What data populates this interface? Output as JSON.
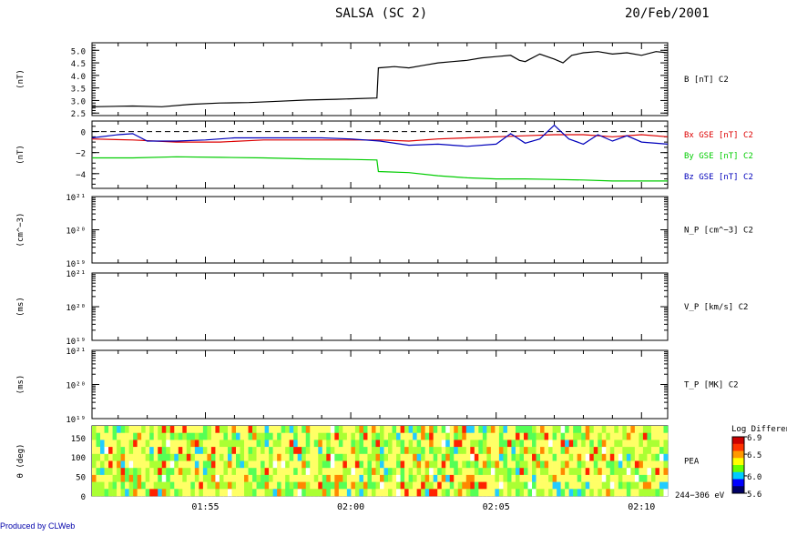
{
  "header": {
    "title": "SALSA (SC 2)",
    "date": "20/Feb/2001"
  },
  "footer": {
    "credit": "Produced by CLWeb"
  },
  "x_axis": {
    "tick_labels": [
      "01:55",
      "02:00",
      "02:05",
      "02:10"
    ],
    "tick_minutes": [
      -5,
      0,
      5,
      10
    ],
    "range_minutes": [
      -8.9,
      10.9
    ],
    "reference": "02:00"
  },
  "panels": [
    {
      "id": "b",
      "unit_label": "(nT)",
      "y_tick_labels": [
        "5.0",
        "4.5",
        "4.0",
        "3.5",
        "3.0",
        "2.5"
      ],
      "series_labels": [
        {
          "text": "B [nT] C2",
          "color": "#000000"
        }
      ]
    },
    {
      "id": "bgse",
      "unit_label": "(nT)",
      "y_tick_labels": [
        "0",
        "−2",
        "−4"
      ],
      "series_labels": [
        {
          "text": "Bx GSE [nT] C2",
          "color": "#dd0000"
        },
        {
          "text": "By GSE [nT] C2",
          "color": "#00cc00"
        },
        {
          "text": "Bz GSE [nT] C2",
          "color": "#0000bb"
        }
      ]
    },
    {
      "id": "np",
      "unit_label": "(cm^−3)",
      "y_tick_labels": [
        "10²¹",
        "10²⁰",
        "10¹⁹"
      ],
      "series_labels": [
        {
          "text": "N_P [cm^−3] C2",
          "color": "#000000"
        }
      ]
    },
    {
      "id": "vp",
      "unit_label": "(ms)",
      "y_tick_labels": [
        "10²¹",
        "10²⁰",
        "10¹⁹"
      ],
      "series_labels": [
        {
          "text": "V_P [km/s] C2",
          "color": "#000000"
        }
      ]
    },
    {
      "id": "tp",
      "unit_label": "(ms)",
      "y_tick_labels": [
        "10²¹",
        "10²⁰",
        "10¹⁹"
      ],
      "series_labels": [
        {
          "text": "T_P [MK] C2",
          "color": "#000000"
        }
      ]
    },
    {
      "id": "pea",
      "unit_label": "θ (deg)",
      "y_tick_labels": [
        "150",
        "100",
        "50",
        "0"
      ],
      "series_labels": [
        {
          "text": "PEA",
          "color": "#000000"
        }
      ],
      "energy_label": "244−306 eV"
    }
  ],
  "colorbar": {
    "title": "Log Differential",
    "tick_labels": [
      "6.9",
      "6.5",
      "6.0",
      "5.6"
    ]
  },
  "chart_data": [
    {
      "type": "line",
      "panel": "b",
      "xlabel": "",
      "ylabel": "(nT)",
      "ylim": [
        2.4,
        5.3
      ],
      "series": [
        {
          "name": "B [nT] C2",
          "color": "#000000",
          "x_minutes": [
            -8.9,
            -7.5,
            -6.5,
            -5.5,
            -4.5,
            -3.5,
            -2.5,
            -1.5,
            -0.5,
            0.9,
            0.95,
            1.5,
            2.0,
            2.5,
            3.0,
            3.5,
            4.0,
            4.5,
            5.0,
            5.5,
            5.8,
            6.0,
            6.5,
            7.0,
            7.3,
            7.6,
            8.0,
            8.5,
            9.0,
            9.5,
            10.0,
            10.5,
            10.9
          ],
          "values": [
            2.75,
            2.78,
            2.75,
            2.85,
            2.9,
            2.92,
            2.97,
            3.02,
            3.05,
            3.1,
            4.3,
            4.35,
            4.3,
            4.4,
            4.5,
            4.55,
            4.6,
            4.7,
            4.75,
            4.8,
            4.6,
            4.55,
            4.85,
            4.65,
            4.5,
            4.8,
            4.9,
            4.95,
            4.85,
            4.9,
            4.8,
            4.95,
            4.9
          ]
        }
      ],
      "reference_line": null
    },
    {
      "type": "line",
      "panel": "bgse",
      "xlabel": "",
      "ylabel": "(nT)",
      "ylim": [
        -5.4,
        1.0
      ],
      "reference_line": 0,
      "series": [
        {
          "name": "Bx GSE [nT] C2",
          "color": "#dd0000",
          "x_minutes": [
            -8.9,
            -7.5,
            -6.0,
            -4.5,
            -3.0,
            -1.5,
            0.0,
            1.0,
            2.0,
            3.0,
            4.0,
            5.0,
            6.0,
            7.0,
            8.0,
            9.0,
            10.0,
            10.9
          ],
          "values": [
            -0.7,
            -0.8,
            -1.0,
            -1.0,
            -0.8,
            -0.8,
            -0.8,
            -0.8,
            -0.9,
            -0.7,
            -0.6,
            -0.5,
            -0.4,
            -0.3,
            -0.3,
            -0.5,
            -0.3,
            -0.5
          ]
        },
        {
          "name": "By GSE [nT] C2",
          "color": "#00cc00",
          "x_minutes": [
            -8.9,
            -7.5,
            -6.0,
            -4.5,
            -3.0,
            -1.5,
            0.0,
            0.9,
            0.95,
            2.0,
            3.0,
            4.0,
            5.0,
            6.0,
            7.0,
            8.0,
            9.0,
            10.0,
            10.9
          ],
          "values": [
            -2.5,
            -2.5,
            -2.4,
            -2.45,
            -2.5,
            -2.6,
            -2.65,
            -2.7,
            -3.8,
            -3.9,
            -4.2,
            -4.4,
            -4.5,
            -4.5,
            -4.55,
            -4.6,
            -4.7,
            -4.7,
            -4.7
          ]
        },
        {
          "name": "Bz GSE [nT] C2",
          "color": "#0000bb",
          "x_minutes": [
            -8.9,
            -8.0,
            -7.5,
            -7.0,
            -6.0,
            -5.0,
            -4.0,
            -3.0,
            -2.0,
            -1.0,
            0.0,
            1.0,
            2.0,
            3.0,
            4.0,
            5.0,
            5.5,
            6.0,
            6.5,
            7.0,
            7.5,
            8.0,
            8.5,
            9.0,
            9.5,
            10.0,
            10.9
          ],
          "values": [
            -0.6,
            -0.3,
            -0.2,
            -0.9,
            -0.9,
            -0.8,
            -0.6,
            -0.6,
            -0.6,
            -0.6,
            -0.7,
            -0.9,
            -1.3,
            -1.2,
            -1.4,
            -1.2,
            -0.2,
            -1.1,
            -0.7,
            0.6,
            -0.7,
            -1.2,
            -0.3,
            -0.9,
            -0.4,
            -1.0,
            -1.2
          ]
        }
      ]
    },
    {
      "type": "line",
      "panel": "np",
      "ylabel": "(cm^−3)",
      "yscale": "log",
      "ylim": [
        1e+19,
        1e+21
      ],
      "series": []
    },
    {
      "type": "line",
      "panel": "vp",
      "ylabel": "(ms)",
      "yscale": "log",
      "ylim": [
        1e+19,
        1e+21
      ],
      "series": []
    },
    {
      "type": "line",
      "panel": "tp",
      "ylabel": "(ms)",
      "yscale": "log",
      "ylim": [
        1e+19,
        1e+21
      ],
      "series": []
    },
    {
      "type": "heatmap",
      "panel": "pea",
      "ylabel": "θ (deg)",
      "ylim": [
        0,
        180
      ],
      "y_bins_deg": [
        0,
        180
      ],
      "color_range": [
        5.6,
        6.9
      ]
    }
  ]
}
